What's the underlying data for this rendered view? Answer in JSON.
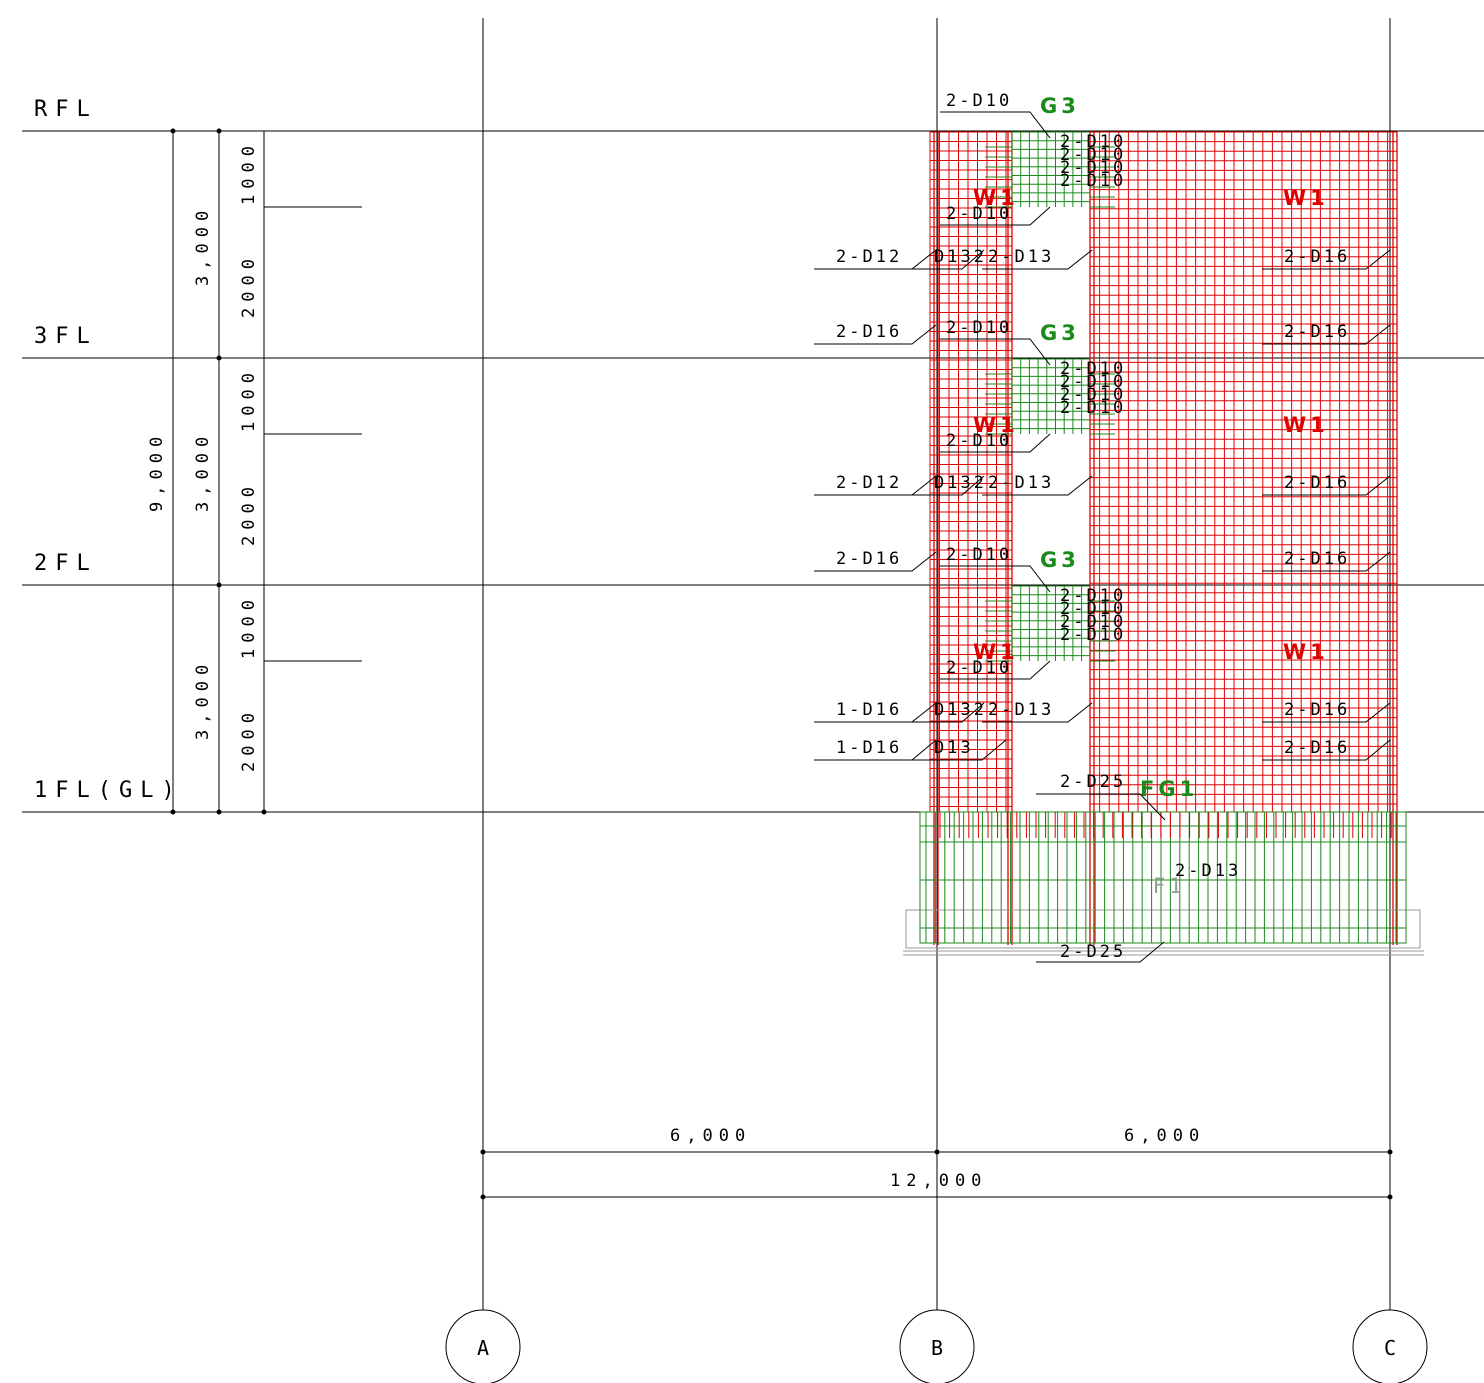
{
  "floor_levels": [
    "RFL",
    "3FL",
    "2FL",
    "1FL(GL)"
  ],
  "story_heights": [
    "3,000",
    "3,000",
    "3,000"
  ],
  "total_height": "9,000",
  "sub_heights": {
    "upper": "1000",
    "lower": "2000"
  },
  "axes": [
    "A",
    "B",
    "C"
  ],
  "spans": [
    "6,000",
    "6,000"
  ],
  "total_span": "12,000",
  "members": {
    "girder": "G3",
    "wall": "W1",
    "foundation_girder": "FG1",
    "footing": "F1"
  },
  "rebar": {
    "d10": "2-D10",
    "d13": "2-D13",
    "d16": "2-D16",
    "d12": "2-D12",
    "d25": "2-D25",
    "one_d16": "1-D16",
    "d13_short": "D13",
    "d132": "D132",
    "d13_2": "2-D13"
  },
  "colors": {
    "wall_mesh": "#e00000",
    "girder_mesh": "#1a8a1a",
    "footing_label": "#9a9a9a",
    "lines": "#000000"
  }
}
